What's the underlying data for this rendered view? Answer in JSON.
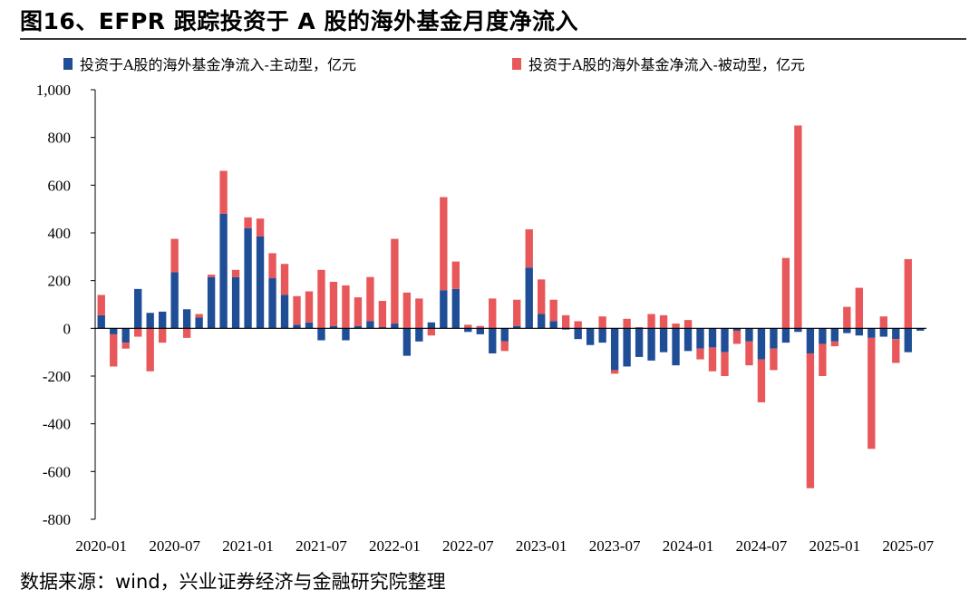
{
  "header": {
    "title": "图16、EFPR 跟踪投资于 A 股的海外基金月度净流入"
  },
  "footer": {
    "source": "数据来源：wind，兴业证券经济与金融研究院整理"
  },
  "colors": {
    "active": "#1F4E96",
    "passive": "#E8585A",
    "axis": "#000000"
  },
  "chart_data": {
    "type": "bar",
    "stacked": true,
    "ylim": [
      -800,
      1000
    ],
    "yticks": [
      1000,
      800,
      600,
      400,
      200,
      0,
      -200,
      -400,
      -600,
      -800
    ],
    "ytick_labels": [
      "1,000",
      "800",
      "600",
      "400",
      "200",
      "0",
      "-200",
      "-400",
      "-600",
      "-800"
    ],
    "xtick_labels": [
      "2020-01",
      "2020-07",
      "2021-01",
      "2021-07",
      "2022-01",
      "2022-07",
      "2023-01",
      "2023-07",
      "2024-01",
      "2024-07",
      "2025-01",
      "2025-07"
    ],
    "legend_position": "top",
    "categories": [
      "2020-01",
      "2020-02",
      "2020-03",
      "2020-04",
      "2020-05",
      "2020-06",
      "2020-07",
      "2020-08",
      "2020-09",
      "2020-10",
      "2020-11",
      "2020-12",
      "2021-01",
      "2021-02",
      "2021-03",
      "2021-04",
      "2021-05",
      "2021-06",
      "2021-07",
      "2021-08",
      "2021-09",
      "2021-10",
      "2021-11",
      "2021-12",
      "2022-01",
      "2022-02",
      "2022-03",
      "2022-04",
      "2022-05",
      "2022-06",
      "2022-07",
      "2022-08",
      "2022-09",
      "2022-10",
      "2022-11",
      "2022-12",
      "2023-01",
      "2023-02",
      "2023-03",
      "2023-04",
      "2023-05",
      "2023-06",
      "2023-07",
      "2023-08",
      "2023-09",
      "2023-10",
      "2023-11",
      "2023-12",
      "2024-01",
      "2024-02",
      "2024-03",
      "2024-04",
      "2024-05",
      "2024-06",
      "2024-07",
      "2024-08",
      "2024-09",
      "2024-10",
      "2024-11",
      "2024-12",
      "2025-01",
      "2025-02",
      "2025-03",
      "2025-04",
      "2025-05",
      "2025-06",
      "2025-07",
      "2025-08"
    ],
    "series": [
      {
        "name": "投资于A股的海外基金净流入-主动型，亿元",
        "color": "#1F4E96",
        "values": [
          55,
          -25,
          -60,
          165,
          65,
          70,
          235,
          80,
          45,
          215,
          480,
          215,
          420,
          385,
          210,
          140,
          15,
          25,
          -50,
          10,
          -50,
          10,
          30,
          5,
          20,
          -115,
          -55,
          25,
          160,
          165,
          -15,
          -25,
          -105,
          -55,
          10,
          255,
          60,
          30,
          -5,
          -45,
          -70,
          -60,
          -175,
          -160,
          -120,
          -135,
          -100,
          -155,
          -95,
          -85,
          -80,
          -100,
          -10,
          -55,
          -130,
          -85,
          -60,
          -15,
          -105,
          -65,
          -55,
          -20,
          -30,
          -40,
          -35,
          -45,
          -100,
          -10
        ]
      },
      {
        "name": "投资于A股的海外基金净流入-被动型，亿元",
        "color": "#E8585A",
        "values": [
          85,
          -135,
          -25,
          -35,
          -180,
          -60,
          140,
          -40,
          15,
          10,
          180,
          30,
          45,
          75,
          105,
          130,
          120,
          130,
          245,
          185,
          180,
          120,
          185,
          110,
          355,
          150,
          125,
          -30,
          390,
          115,
          15,
          10,
          125,
          -40,
          110,
          160,
          145,
          90,
          55,
          30,
          0,
          50,
          -15,
          40,
          5,
          60,
          55,
          20,
          35,
          -45,
          -100,
          -100,
          -55,
          -100,
          -180,
          -90,
          295,
          850,
          -565,
          -135,
          -20,
          90,
          170,
          -465,
          50,
          -100,
          290,
          0
        ]
      }
    ]
  }
}
